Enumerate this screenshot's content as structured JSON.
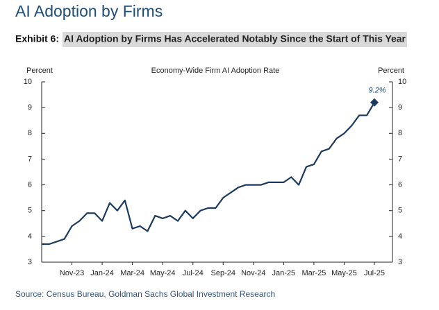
{
  "header": {
    "title": "AI Adoption by Firms",
    "exhibit_label": "Exhibit 6:",
    "exhibit_title": "AI Adoption by Firms Has Accelerated Notably Since the Start of This Year"
  },
  "chart_data": {
    "type": "line",
    "title": "Economy-Wide Firm AI Adoption Rate",
    "ylabel": "Percent",
    "y2label": "Percent",
    "categories": [
      null,
      null,
      null,
      null,
      "Nov-23",
      null,
      null,
      null,
      "Jan-24",
      null,
      null,
      null,
      "Mar-24",
      null,
      null,
      null,
      "May-24",
      null,
      null,
      null,
      "Jul-24",
      null,
      null,
      null,
      "Sep-24",
      null,
      null,
      null,
      "Nov-24",
      null,
      null,
      null,
      "Jan-25",
      null,
      null,
      null,
      "Mar-25",
      null,
      null,
      null,
      "May-25",
      null,
      null,
      null,
      "Jul-25"
    ],
    "series": [
      {
        "name": "Economy-Wide Firm AI Adoption Rate",
        "color": "#1b3a5c",
        "values": [
          3.7,
          3.7,
          3.8,
          3.9,
          4.4,
          4.6,
          4.9,
          4.9,
          4.6,
          5.3,
          5.0,
          5.4,
          4.3,
          4.4,
          4.2,
          4.8,
          4.7,
          4.8,
          4.6,
          5.0,
          4.7,
          5.0,
          5.1,
          5.1,
          5.5,
          5.7,
          5.9,
          6.0,
          6.0,
          6.0,
          6.1,
          6.1,
          6.1,
          6.3,
          6.0,
          6.7,
          6.8,
          7.3,
          7.4,
          7.8,
          8.0,
          8.3,
          8.7,
          8.7,
          9.2
        ],
        "value_labels": [
          null,
          null,
          null,
          null,
          null,
          null,
          null,
          null,
          null,
          null,
          null,
          null,
          null,
          null,
          null,
          null,
          null,
          null,
          null,
          null,
          null,
          null,
          null,
          null,
          null,
          null,
          null,
          null,
          null,
          null,
          null,
          null,
          null,
          null,
          null,
          null,
          null,
          null,
          null,
          null,
          null,
          null,
          null,
          null,
          "9.2%"
        ]
      }
    ],
    "ylim": [
      3,
      10
    ],
    "yticks": [
      3,
      4,
      5,
      6,
      7,
      8,
      9,
      10
    ],
    "y2lim": [
      3,
      10
    ],
    "y2ticks": [
      3,
      4,
      5,
      6,
      7,
      8,
      9,
      10
    ]
  },
  "source": "Source: Census Bureau, Goldman Sachs Global Investment Research"
}
